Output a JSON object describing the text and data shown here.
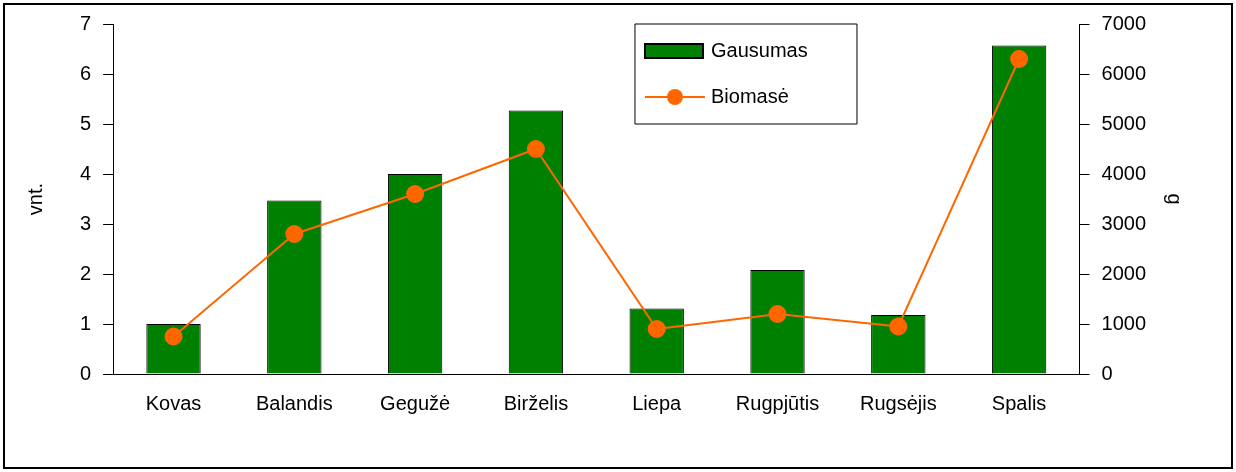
{
  "chart_data": {
    "type": "bar",
    "ylabel": "vnt.",
    "y2label": "g",
    "categories": [
      "Kovas",
      "Balandis",
      "Gegužė",
      "Birželis",
      "Liepa",
      "Rugpjūtis",
      "Rugsėjis",
      "Spalis"
    ],
    "series": [
      {
        "name": "Gausumas",
        "color": "#008000",
        "values": [
          1.0,
          3.47,
          4.0,
          5.27,
          1.31,
          2.08,
          1.18,
          6.57
        ]
      },
      {
        "name": "Biomasė",
        "type": "line",
        "axis": "y2",
        "color": "#ff6600",
        "values": [
          750,
          2800,
          3600,
          4500,
          900,
          1200,
          950,
          6300
        ]
      }
    ],
    "ylim": [
      0,
      7
    ],
    "yticks": [
      0,
      1,
      2,
      3,
      4,
      5,
      6,
      7
    ],
    "y2lim": [
      0,
      7000
    ],
    "y2ticks": [
      0,
      1000,
      2000,
      3000,
      4000,
      5000,
      6000,
      7000
    ],
    "grid": false,
    "legend": "top",
    "marker": "circle",
    "line_style": "solid"
  }
}
